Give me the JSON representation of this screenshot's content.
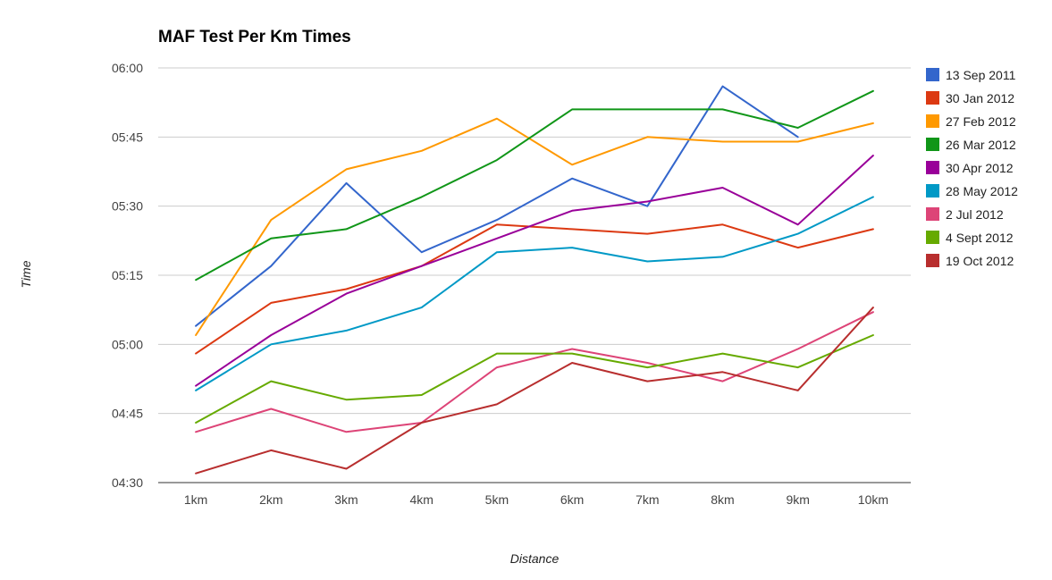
{
  "chart_data": {
    "type": "line",
    "title": "MAF Test Per Km Times",
    "xlabel": "Distance",
    "ylabel": "Time",
    "categories": [
      "1km",
      "2km",
      "3km",
      "4km",
      "5km",
      "6km",
      "7km",
      "8km",
      "9km",
      "10km"
    ],
    "y_ticks": [
      "04:30",
      "04:45",
      "05:00",
      "05:15",
      "05:30",
      "05:45",
      "06:00"
    ],
    "ylim_seconds": [
      270,
      360
    ],
    "grid": true,
    "legend_position": "right",
    "series": [
      {
        "name": "13 Sep 2011",
        "color": "#3366cc",
        "values": [
          "05:04",
          "05:17",
          "05:35",
          "05:20",
          "05:27",
          "05:36",
          "05:30",
          "05:56",
          "05:45",
          null
        ]
      },
      {
        "name": "30 Jan 2012",
        "color": "#dc3912",
        "values": [
          "04:58",
          "05:09",
          "05:12",
          "05:17",
          "05:26",
          "05:25",
          "05:24",
          "05:26",
          "05:21",
          "05:25"
        ]
      },
      {
        "name": "27 Feb 2012",
        "color": "#ff9900",
        "values": [
          "05:02",
          "05:27",
          "05:38",
          "05:42",
          "05:49",
          "05:39",
          "05:45",
          "05:44",
          "05:44",
          "05:48"
        ]
      },
      {
        "name": "26 Mar 2012",
        "color": "#109618",
        "values": [
          "05:14",
          "05:23",
          "05:25",
          "05:32",
          "05:40",
          "05:51",
          "05:51",
          "05:51",
          "05:47",
          "05:55"
        ]
      },
      {
        "name": "30 Apr 2012",
        "color": "#990099",
        "values": [
          "04:51",
          "05:02",
          "05:11",
          "05:17",
          "05:23",
          "05:29",
          "05:31",
          "05:34",
          "05:26",
          "05:41"
        ]
      },
      {
        "name": "28 May 2012",
        "color": "#0099c6",
        "values": [
          "04:50",
          "05:00",
          "05:03",
          "05:08",
          "05:20",
          "05:21",
          "05:18",
          "05:19",
          "05:24",
          "05:32"
        ]
      },
      {
        "name": "2 Jul 2012",
        "color": "#dd4477",
        "values": [
          "04:41",
          "04:46",
          "04:41",
          "04:43",
          "04:55",
          "04:59",
          "04:56",
          "04:52",
          "04:59",
          "05:07"
        ]
      },
      {
        "name": "4 Sept 2012",
        "color": "#66aa00",
        "values": [
          "04:43",
          "04:52",
          "04:48",
          "04:49",
          "04:58",
          "04:58",
          "04:55",
          "04:58",
          "04:55",
          "05:02"
        ]
      },
      {
        "name": "19 Oct 2012",
        "color": "#b82e2e",
        "values": [
          "04:32",
          "04:37",
          "04:33",
          "04:43",
          "04:47",
          "04:56",
          "04:52",
          "04:54",
          "04:50",
          "05:08"
        ]
      }
    ]
  }
}
